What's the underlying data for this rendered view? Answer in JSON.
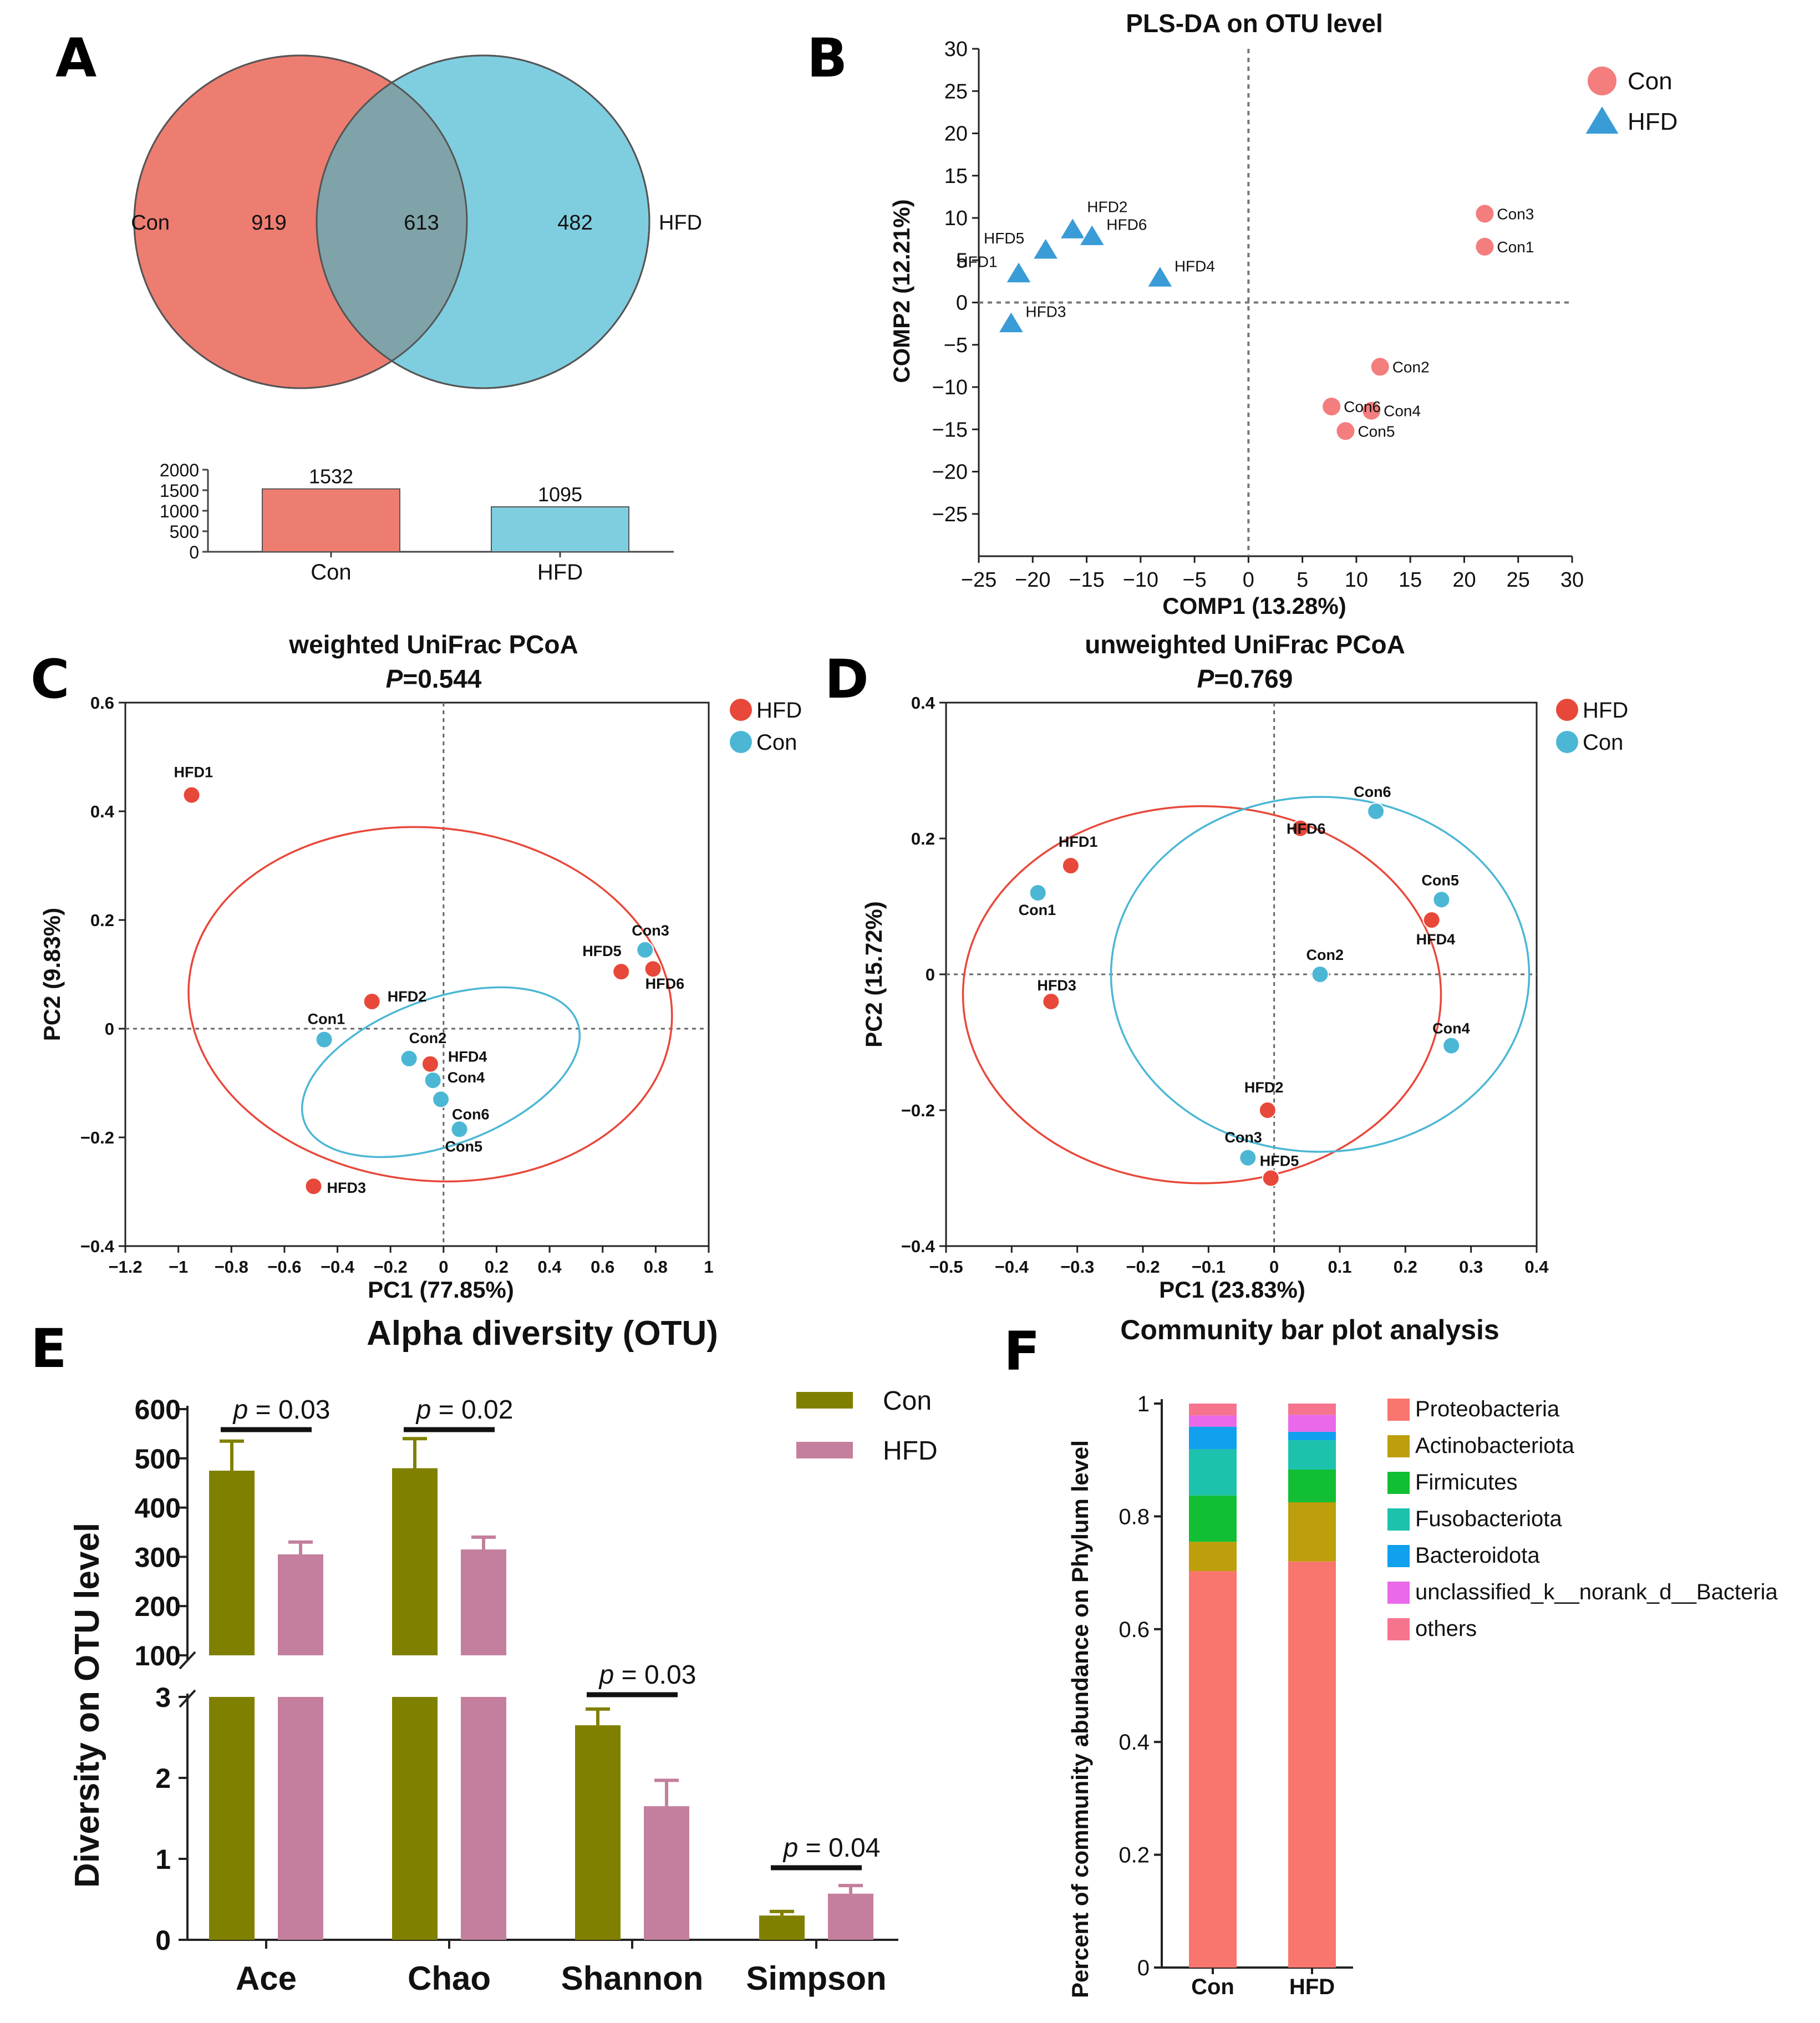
{
  "panel_labels": [
    "A",
    "B",
    "C",
    "D",
    "E",
    "F"
  ],
  "colors": {
    "con_red": "#EE7D71",
    "hfd_blue": "#7FCEE0",
    "overlap": "#7FA3A8",
    "pls_con": "#F47D7D",
    "pls_hfd": "#3A9CD6",
    "pcoa_hfd": "#E8483A",
    "pcoa_con": "#4BB7D4",
    "olive": "#808000",
    "mauve": "#C37F9D"
  },
  "chart_data": [
    {
      "id": "venn",
      "type": "venn",
      "sets": [
        "Con",
        "HFD"
      ],
      "counts": {
        "con_only": "919",
        "shared": "613",
        "hfd_only": "482"
      },
      "bar": {
        "type": "bar",
        "categories": [
          "Con",
          "HFD"
        ],
        "values": [
          1532,
          1095
        ],
        "value_labels": [
          "1532",
          "1095"
        ],
        "ylim": [
          0,
          2000
        ],
        "yticks": [
          "0",
          "500",
          "1000",
          "1500",
          "2000"
        ]
      }
    },
    {
      "id": "pls",
      "type": "scatter",
      "title": "PLS-DA on OTU level",
      "xlabel": "COMP1 (13.28%)",
      "ylabel": "COMP2 (12.21%)",
      "xlim": [
        -25,
        30
      ],
      "ylim": [
        -30,
        30
      ],
      "xticks": [
        -25,
        -20,
        -15,
        -10,
        -5,
        0,
        5,
        10,
        15,
        20,
        25,
        30
      ],
      "xtick_labels": [
        "−25",
        "−20",
        "−15",
        "−10",
        "−5",
        "0",
        "5",
        "10",
        "15",
        "20",
        "25",
        "30"
      ],
      "yticks": [
        -25,
        -20,
        -15,
        -10,
        -5,
        0,
        5,
        10,
        15,
        20,
        25,
        30
      ],
      "ytick_labels": [
        "−25",
        "−20",
        "−15",
        "−10",
        "−5",
        "0",
        "5",
        "10",
        "15",
        "20",
        "25",
        "30"
      ],
      "legend": [
        "Con",
        "HFD"
      ],
      "series": [
        {
          "name": "Con",
          "points": [
            {
              "label": "Con1",
              "x": 21.9,
              "y": 6.6
            },
            {
              "label": "Con2",
              "x": 12.2,
              "y": -7.6
            },
            {
              "label": "Con3",
              "x": 21.9,
              "y": 10.5
            },
            {
              "label": "Con4",
              "x": 11.4,
              "y": -12.8
            },
            {
              "label": "Con5",
              "x": 9.0,
              "y": -15.2
            },
            {
              "label": "Con6",
              "x": 7.7,
              "y": -12.3
            }
          ]
        },
        {
          "name": "HFD",
          "points": [
            {
              "label": "HFD1",
              "x": -21.3,
              "y": 3.4
            },
            {
              "label": "HFD2",
              "x": -16.3,
              "y": 8.6
            },
            {
              "label": "HFD3",
              "x": -22.0,
              "y": -2.5
            },
            {
              "label": "HFD4",
              "x": -8.2,
              "y": 2.9
            },
            {
              "label": "HFD5",
              "x": -18.8,
              "y": 6.2
            },
            {
              "label": "HFD6",
              "x": -14.5,
              "y": 7.8
            }
          ]
        }
      ]
    },
    {
      "id": "pcoa_w",
      "type": "scatter",
      "title": "weighted UniFrac PCoA",
      "subtitle_p": "P",
      "subtitle_val": "=0.544",
      "xlabel": "PC1 (77.85%)",
      "ylabel": "PC2 (9.83%)",
      "xlim": [
        -1.2,
        1.0
      ],
      "ylim": [
        -0.4,
        0.6
      ],
      "xticks": [
        -1.2,
        -1.0,
        -0.8,
        -0.6,
        -0.4,
        -0.2,
        0,
        0.2,
        0.4,
        0.6,
        0.8,
        1.0
      ],
      "xtick_labels": [
        "−1.2",
        "−1",
        "−0.8",
        "−0.6",
        "−0.4",
        "−0.2",
        "0",
        "0.2",
        "0.4",
        "0.6",
        "0.8",
        "1"
      ],
      "yticks": [
        -0.4,
        -0.2,
        0,
        0.2,
        0.4,
        0.6
      ],
      "ytick_labels": [
        "−0.4",
        "−0.2",
        "0",
        "0.2",
        "0.4",
        "0.6"
      ],
      "legend": [
        "HFD",
        "Con"
      ],
      "series": [
        {
          "name": "HFD",
          "points": [
            {
              "label": "HFD1",
              "x": -0.95,
              "y": 0.43
            },
            {
              "label": "HFD2",
              "x": -0.27,
              "y": 0.05
            },
            {
              "label": "HFD3",
              "x": -0.49,
              "y": -0.29
            },
            {
              "label": "HFD4",
              "x": -0.05,
              "y": -0.065
            },
            {
              "label": "HFD5",
              "x": 0.67,
              "y": 0.105
            },
            {
              "label": "HFD6",
              "x": 0.79,
              "y": 0.11
            }
          ]
        },
        {
          "name": "Con",
          "points": [
            {
              "label": "Con1",
              "x": -0.45,
              "y": -0.02
            },
            {
              "label": "Con2",
              "x": -0.13,
              "y": -0.055
            },
            {
              "label": "Con3",
              "x": 0.76,
              "y": 0.145
            },
            {
              "label": "Con4",
              "x": -0.04,
              "y": -0.095
            },
            {
              "label": "Con5",
              "x": 0.06,
              "y": -0.185
            },
            {
              "label": "Con6",
              "x": -0.01,
              "y": -0.13
            }
          ]
        }
      ]
    },
    {
      "id": "pcoa_u",
      "type": "scatter",
      "title": "unweighted UniFrac PCoA",
      "subtitle_p": "P",
      "subtitle_val": "=0.769",
      "xlabel": "PC1 (23.83%)",
      "ylabel": "PC2 (15.72%)",
      "xlim": [
        -0.5,
        0.4
      ],
      "ylim": [
        -0.4,
        0.4
      ],
      "xticks": [
        -0.5,
        -0.4,
        -0.3,
        -0.2,
        -0.1,
        0,
        0.1,
        0.2,
        0.3,
        0.4
      ],
      "xtick_labels": [
        "−0.5",
        "−0.4",
        "−0.3",
        "−0.2",
        "−0.1",
        "0",
        "0.1",
        "0.2",
        "0.3",
        "0.4"
      ],
      "yticks": [
        -0.4,
        -0.2,
        0,
        0.2,
        0.4
      ],
      "ytick_labels": [
        "−0.4",
        "−0.2",
        "0",
        "0.2",
        "0.4"
      ],
      "legend": [
        "HFD",
        "Con"
      ],
      "series": [
        {
          "name": "HFD",
          "points": [
            {
              "label": "HFD1",
              "x": -0.31,
              "y": 0.16
            },
            {
              "label": "HFD2",
              "x": -0.01,
              "y": -0.2
            },
            {
              "label": "HFD3",
              "x": -0.34,
              "y": -0.04
            },
            {
              "label": "HFD4",
              "x": 0.24,
              "y": 0.08
            },
            {
              "label": "HFD5",
              "x": -0.005,
              "y": -0.3
            },
            {
              "label": "HFD6",
              "x": 0.04,
              "y": 0.215
            }
          ]
        },
        {
          "name": "Con",
          "points": [
            {
              "label": "Con1",
              "x": -0.36,
              "y": 0.12
            },
            {
              "label": "Con2",
              "x": 0.07,
              "y": 0.0
            },
            {
              "label": "Con3",
              "x": -0.04,
              "y": -0.27
            },
            {
              "label": "Con4",
              "x": 0.27,
              "y": -0.105
            },
            {
              "label": "Con5",
              "x": 0.255,
              "y": 0.11
            },
            {
              "label": "Con6",
              "x": 0.155,
              "y": 0.24
            }
          ]
        }
      ]
    },
    {
      "id": "alpha",
      "type": "bar",
      "title": "Alpha diversity (OTU)",
      "ylabel": "Diversity on OTU level",
      "categories": [
        "Ace",
        "Chao",
        "Shannon",
        "Simpson"
      ],
      "legend": [
        "Con",
        "HFD"
      ],
      "series": [
        {
          "name": "Con",
          "values": [
            475,
            480,
            2.65,
            0.3
          ],
          "errors": [
            60,
            60,
            0.2,
            0.05
          ]
        },
        {
          "name": "HFD",
          "values": [
            305,
            315,
            1.65,
            0.57
          ],
          "errors": [
            25,
            25,
            0.32,
            0.1
          ]
        }
      ],
      "axis_upper": {
        "range": [
          100,
          600
        ],
        "ticks": [
          "100",
          "200",
          "300",
          "400",
          "500",
          "600"
        ]
      },
      "axis_lower": {
        "range": [
          0,
          3
        ],
        "ticks": [
          "0",
          "1",
          "2",
          "3"
        ]
      },
      "p_values": [
        {
          "pre": "p",
          "val": " = 0.03"
        },
        {
          "pre": "p",
          "val": " = 0.02"
        },
        {
          "pre": "p",
          "val": " = 0.03"
        },
        {
          "pre": "p",
          "val": " = 0.04"
        }
      ]
    },
    {
      "id": "community",
      "type": "stacked_bar",
      "title": "Community bar plot analysis",
      "ylabel": "Percent of community abundance on Phylum level",
      "categories": [
        "Con",
        "HFD"
      ],
      "ylim": [
        0,
        1
      ],
      "yticks": [
        0,
        0.2,
        0.4,
        0.6,
        0.8,
        1
      ],
      "ytick_labels": [
        "0",
        "0.2",
        "0.4",
        "0.6",
        "0.8",
        "1"
      ],
      "series": [
        {
          "name": "Proteobacteria",
          "color": "#F8766D",
          "values": [
            0.703,
            0.72
          ]
        },
        {
          "name": "Actinobacteriota",
          "color": "#BD9E0B",
          "values": [
            0.052,
            0.105
          ]
        },
        {
          "name": "Firmicutes",
          "color": "#12BF34",
          "values": [
            0.082,
            0.058
          ]
        },
        {
          "name": "Fusobacteriota",
          "color": "#1CC2AC",
          "values": [
            0.082,
            0.052
          ]
        },
        {
          "name": "Bacteroidota",
          "color": "#10A0EE",
          "values": [
            0.04,
            0.015
          ]
        },
        {
          "name": "unclassified_k__norank_d__Bacteria",
          "color": "#E969E9",
          "values": [
            0.02,
            0.03
          ]
        },
        {
          "name": "others",
          "color": "#F6748E",
          "values": [
            0.021,
            0.02
          ]
        }
      ]
    }
  ]
}
